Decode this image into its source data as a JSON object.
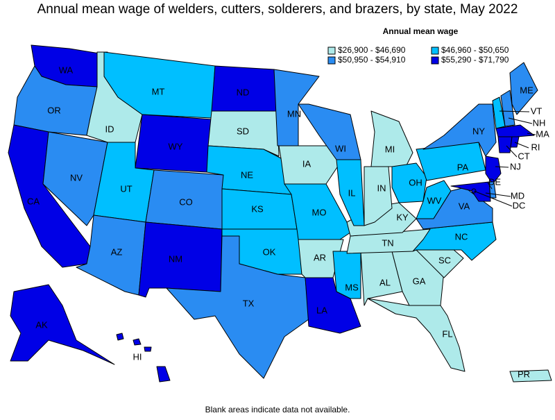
{
  "header": {
    "title": "Annual mean wage of welders, cutters, solderers, and brazers, by state, May 2022"
  },
  "legend": {
    "title": "Annual mean wage",
    "items": [
      {
        "label": "$26,900 - $46,690",
        "color": "#aeeaea"
      },
      {
        "label": "$46,960 - $50,650",
        "color": "#00bfff"
      },
      {
        "label": "$50,950 - $54,910",
        "color": "#2a8cf2"
      },
      {
        "label": "$55,290 - $71,790",
        "color": "#0000e6"
      }
    ]
  },
  "states": [
    {
      "abbr": "WA",
      "color": "#0000e6"
    },
    {
      "abbr": "OR",
      "color": "#2a8cf2"
    },
    {
      "abbr": "CA",
      "color": "#0000e6"
    },
    {
      "abbr": "NV",
      "color": "#2a8cf2"
    },
    {
      "abbr": "ID",
      "color": "#aeeaea"
    },
    {
      "abbr": "MT",
      "color": "#00bfff"
    },
    {
      "abbr": "WY",
      "color": "#0000e6"
    },
    {
      "abbr": "UT",
      "color": "#00bfff"
    },
    {
      "abbr": "CO",
      "color": "#2a8cf2"
    },
    {
      "abbr": "AZ",
      "color": "#2a8cf2"
    },
    {
      "abbr": "NM",
      "color": "#0000e6"
    },
    {
      "abbr": "ND",
      "color": "#0000e6"
    },
    {
      "abbr": "SD",
      "color": "#aeeaea"
    },
    {
      "abbr": "NE",
      "color": "#00bfff"
    },
    {
      "abbr": "KS",
      "color": "#00bfff"
    },
    {
      "abbr": "OK",
      "color": "#00bfff"
    },
    {
      "abbr": "TX",
      "color": "#2a8cf2"
    },
    {
      "abbr": "MN",
      "color": "#2a8cf2"
    },
    {
      "abbr": "IA",
      "color": "#aeeaea"
    },
    {
      "abbr": "MO",
      "color": "#00bfff"
    },
    {
      "abbr": "AR",
      "color": "#aeeaea"
    },
    {
      "abbr": "LA",
      "color": "#0000e6"
    },
    {
      "abbr": "MS",
      "color": "#00bfff"
    },
    {
      "abbr": "AL",
      "color": "#aeeaea"
    },
    {
      "abbr": "GA",
      "color": "#aeeaea"
    },
    {
      "abbr": "FL",
      "color": "#aeeaea"
    },
    {
      "abbr": "SC",
      "color": "#aeeaea"
    },
    {
      "abbr": "NC",
      "color": "#00bfff"
    },
    {
      "abbr": "TN",
      "color": "#aeeaea"
    },
    {
      "abbr": "KY",
      "color": "#aeeaea"
    },
    {
      "abbr": "IN",
      "color": "#aeeaea"
    },
    {
      "abbr": "IL",
      "color": "#00bfff"
    },
    {
      "abbr": "WI",
      "color": "#2a8cf2"
    },
    {
      "abbr": "MI",
      "color": "#aeeaea"
    },
    {
      "abbr": "OH",
      "color": "#00bfff"
    },
    {
      "abbr": "WV",
      "color": "#00bfff"
    },
    {
      "abbr": "VA",
      "color": "#2a8cf2"
    },
    {
      "abbr": "PA",
      "color": "#00bfff"
    },
    {
      "abbr": "NY",
      "color": "#2a8cf2"
    },
    {
      "abbr": "VT",
      "color": "#00bfff"
    },
    {
      "abbr": "NH",
      "color": "#2a8cf2"
    },
    {
      "abbr": "ME",
      "color": "#2a8cf2"
    },
    {
      "abbr": "MA",
      "color": "#0000e6"
    },
    {
      "abbr": "CT",
      "color": "#0000e6"
    },
    {
      "abbr": "RI",
      "color": "#0000e6"
    },
    {
      "abbr": "NJ",
      "color": "#0000e6"
    },
    {
      "abbr": "DE",
      "color": "#2a8cf2"
    },
    {
      "abbr": "MD",
      "color": "#0000e6"
    },
    {
      "abbr": "DC",
      "color": "#0000e6"
    },
    {
      "abbr": "AK",
      "color": "#0000e6"
    },
    {
      "abbr": "HI",
      "color": "#0000e6"
    },
    {
      "abbr": "PR",
      "color": "#aeeaea"
    }
  ],
  "footnote": "Blank areas indicate data not available."
}
